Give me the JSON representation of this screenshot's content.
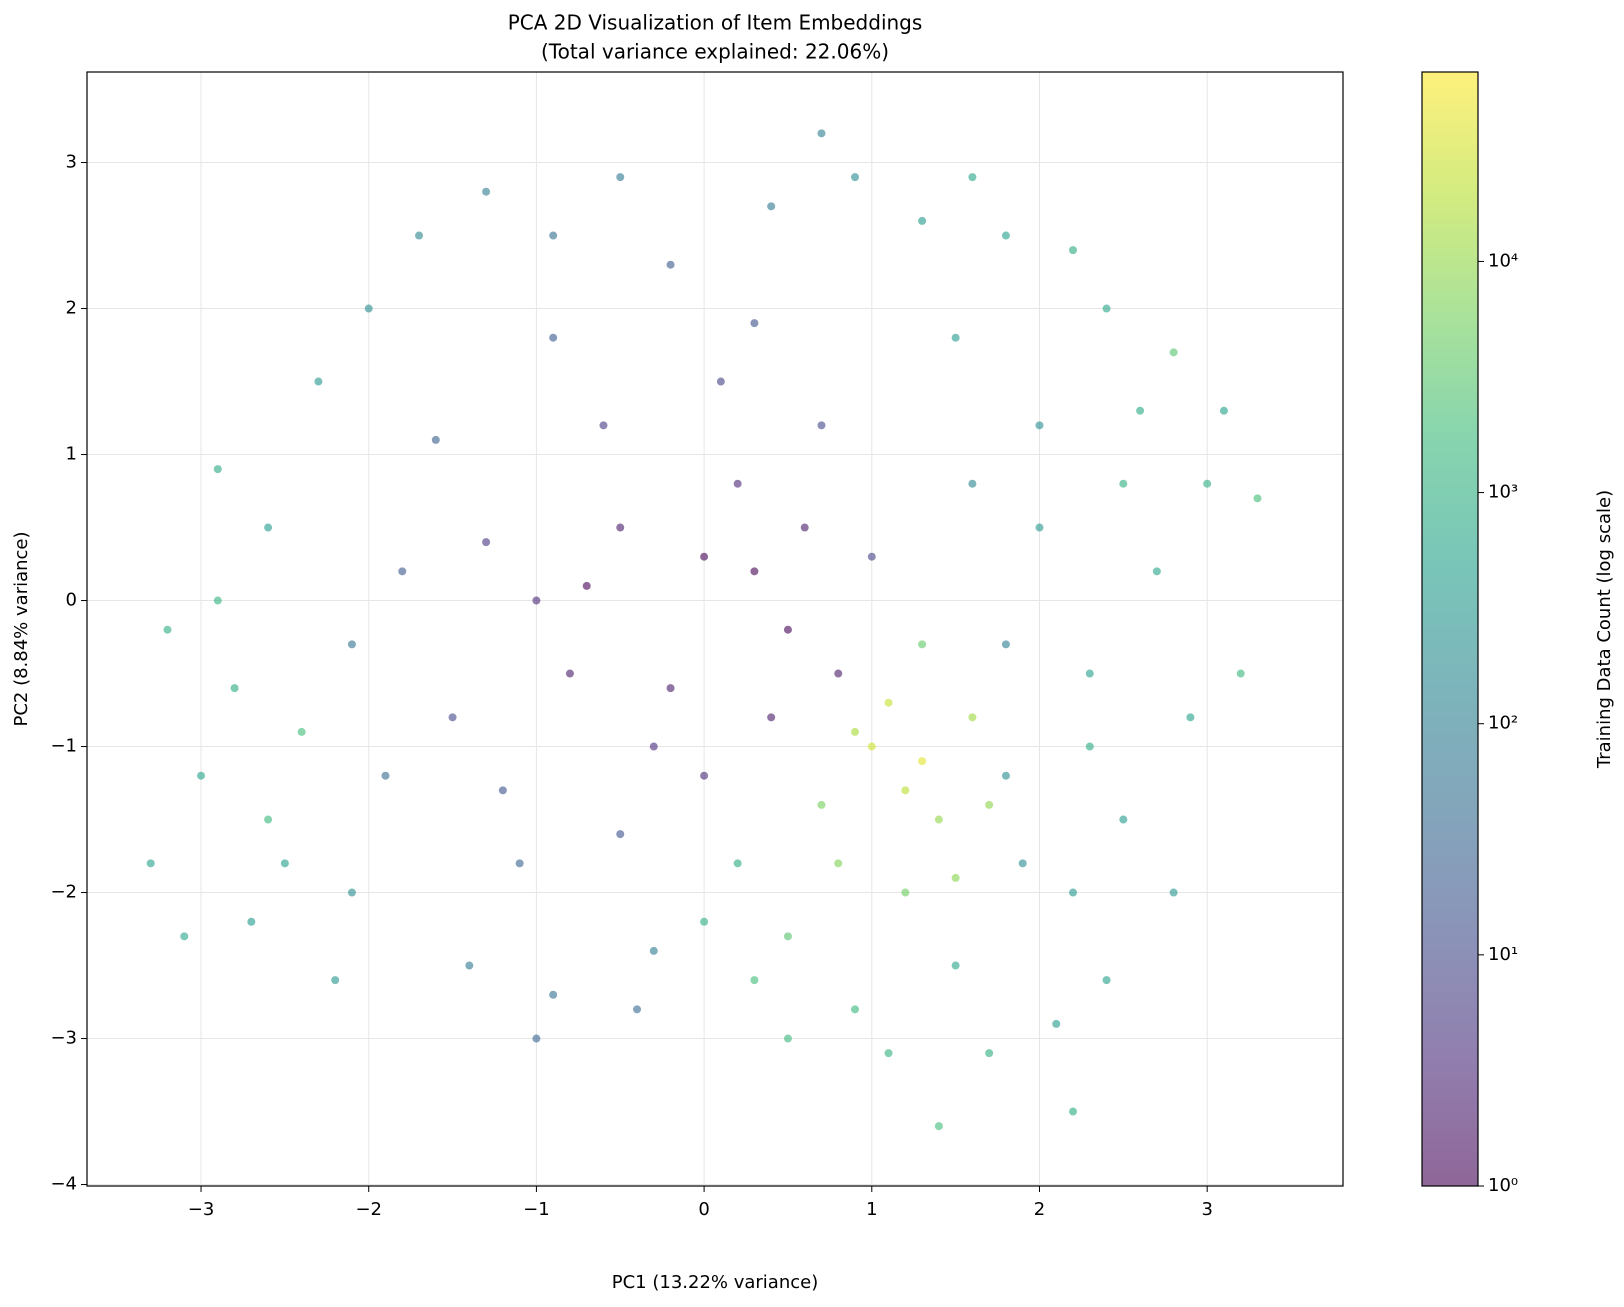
{
  "chart_data": {
    "type": "scatter",
    "title": "PCA 2D Visualization of Item Embeddings",
    "subtitle": "(Total variance explained: 22.06%)",
    "x_label": "PC1 (13.22% variance)",
    "y_label": "PC2 (8.84% variance)",
    "colorbar_label": "Training Data Count (log scale)",
    "colormap": "viridis",
    "alpha": 0.6,
    "grid": true,
    "color_scale": "log",
    "xlim": [
      -3.68,
      3.81
    ],
    "ylim": [
      -4.01,
      3.62
    ],
    "clim": [
      1,
      66000
    ],
    "xticks": [
      {
        "value": -3,
        "label": "−3"
      },
      {
        "value": -2,
        "label": "−2"
      },
      {
        "value": -1,
        "label": "−1"
      },
      0,
      1,
      2,
      3
    ],
    "yticks": [
      {
        "value": -4,
        "label": "−4"
      },
      {
        "value": -3,
        "label": "−3"
      },
      {
        "value": -2,
        "label": "−2"
      },
      {
        "value": -1,
        "label": "−1"
      },
      0,
      1,
      2,
      3
    ],
    "cticks": [
      {
        "value": 1,
        "label": "10⁰"
      },
      {
        "value": 10,
        "label": "10¹"
      },
      {
        "value": 100,
        "label": "10²"
      },
      {
        "value": 1000,
        "label": "10³"
      },
      {
        "value": 10000,
        "label": "10⁴"
      }
    ],
    "x": [
      -0.5,
      0,
      0.3,
      -1,
      -0.8,
      0.5,
      -0.2,
      0.2,
      -1.3,
      -0.6,
      0.1,
      -1.5,
      -1.2,
      0.6,
      0.8,
      -0.3,
      0,
      -1.8,
      -1.6,
      -0.9,
      0.3,
      -0.2,
      0.7,
      1,
      -1.1,
      -0.5,
      -1.9,
      -2.1,
      0.4,
      -0.7,
      -2.6,
      -2.8,
      -3,
      -2.5,
      -2.9,
      -2.3,
      -3.2,
      -2.7,
      -2.2,
      -3.3,
      -2.4,
      -2.6,
      -2,
      -1.7,
      -1.3,
      -3.1,
      -2.9,
      -2.1,
      -0.5,
      0.4,
      0.9,
      1.3,
      1.6,
      0.7,
      1.8,
      2.2,
      2.4,
      -0.9,
      2,
      2.3,
      1.8,
      2.5,
      2.2,
      2.7,
      2.9,
      3,
      2.6,
      2,
      1.6,
      1.8,
      2.4,
      2.1,
      1.7,
      2.8,
      3.2,
      3.3,
      2.5,
      1.5,
      2.8,
      3.1,
      1.9,
      2.3,
      1.5,
      1,
      1.2,
      0.9,
      1.4,
      1.6,
      1.1,
      1.3,
      1.5,
      0.7,
      1.7,
      1.2,
      0.5,
      0.3,
      0.9,
      1.1,
      0,
      1.3,
      0.8,
      -0.9,
      -0.4,
      -1.4,
      -1,
      0.5,
      1.4,
      2.2,
      -0.3,
      0.2
    ],
    "y": [
      0.5,
      0.3,
      0.2,
      0,
      -0.5,
      -0.2,
      -0.6,
      0.8,
      0.4,
      1.2,
      1.5,
      -0.8,
      -1.3,
      0.5,
      -0.5,
      -1,
      -1.2,
      0.2,
      1.1,
      1.8,
      1.9,
      2.3,
      1.2,
      0.3,
      -1.8,
      -1.6,
      -1.2,
      -0.3,
      -0.8,
      0.1,
      0.5,
      -0.6,
      -1.2,
      -1.8,
      0.9,
      1.5,
      -0.2,
      -2.2,
      -2.6,
      -1.8,
      -0.9,
      -1.5,
      2,
      2.5,
      2.8,
      -2.3,
      0,
      -2,
      2.9,
      2.7,
      2.9,
      2.6,
      2.9,
      3.2,
      2.5,
      2.4,
      2,
      2.5,
      0.5,
      -0.5,
      -1.2,
      -1.5,
      -2,
      0.2,
      -0.8,
      0.8,
      1.3,
      1.2,
      0.8,
      -0.3,
      -2.6,
      -2.9,
      -3.1,
      -2,
      -0.5,
      0.7,
      0.8,
      1.8,
      1.7,
      1.3,
      -1.8,
      -1,
      -2.5,
      -1,
      -1.3,
      -0.9,
      -1.5,
      -0.8,
      -0.7,
      -1.1,
      -1.9,
      -1.4,
      -1.4,
      -2,
      -2.3,
      -2.6,
      -2.8,
      -3.1,
      -2.2,
      -0.3,
      -1.8,
      -2.7,
      -2.8,
      -2.5,
      -3,
      -3,
      -3.6,
      -3.5,
      -2.4,
      -1.8
    ],
    "c": [
      2,
      1,
      1,
      3,
      2,
      1,
      2,
      3,
      5,
      6,
      8,
      10,
      15,
      2,
      2,
      4,
      3,
      20,
      25,
      20,
      15,
      20,
      10,
      8,
      30,
      15,
      40,
      60,
      2,
      1,
      400,
      800,
      600,
      500,
      700,
      300,
      900,
      400,
      300,
      500,
      2000,
      1500,
      200,
      150,
      100,
      600,
      1200,
      200,
      80,
      80,
      200,
      400,
      600,
      100,
      500,
      800,
      600,
      50,
      300,
      500,
      200,
      400,
      300,
      600,
      500,
      900,
      700,
      200,
      150,
      100,
      500,
      400,
      1000,
      300,
      1500,
      2000,
      1000,
      400,
      3000,
      500,
      200,
      800,
      600,
      30000,
      20000,
      15000,
      10000,
      12000,
      25000,
      40000,
      8000,
      6000,
      9000,
      5000,
      3000,
      2000,
      1500,
      1200,
      1000,
      4000,
      7000,
      60,
      40,
      80,
      30,
      1500,
      2000,
      800,
      100,
      800
    ]
  }
}
